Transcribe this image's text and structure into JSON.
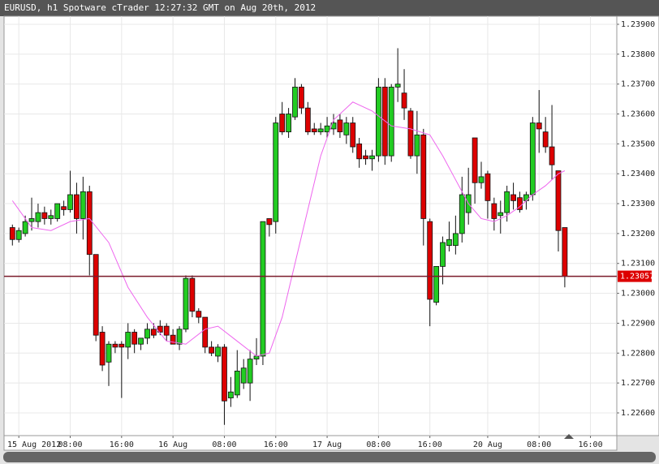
{
  "chart_data": {
    "type": "candlestick",
    "title": "EURUSD, h1 Spotware cTrader 12:27:32 GMT on Aug 20th, 2012",
    "up_color": "#22cc22",
    "down_color": "#dd0000",
    "grid": true,
    "open": [
      1.2322,
      1.2318,
      1.232,
      1.2324,
      1.2324,
      1.2327,
      1.2325,
      1.2325,
      1.2329,
      1.2328,
      1.2333,
      1.2325,
      1.2334,
      1.2313,
      1.2287,
      1.2277,
      1.2283,
      1.2283,
      1.2282,
      1.2287,
      1.2283,
      1.2285,
      1.2288,
      1.2289,
      1.2289,
      1.2286,
      1.2283,
      1.2288,
      1.2305,
      1.2294,
      1.2292,
      1.2282,
      1.2279,
      1.2282,
      1.2265,
      1.2266,
      1.227,
      1.227,
      1.2278,
      1.2279,
      1.2325,
      1.2324,
      1.236,
      1.2354,
      1.2359,
      1.2369,
      1.2362,
      1.2355,
      1.2354,
      1.2354,
      1.2355,
      1.2358,
      1.2353,
      1.2357,
      1.235,
      1.2346,
      1.2345,
      1.2346,
      1.2369,
      1.2346,
      1.2369,
      1.2367,
      1.2361,
      1.2346,
      1.2353,
      1.2324,
      1.2297,
      1.2309,
      1.2316,
      1.2316,
      1.232,
      1.2327,
      1.2352,
      1.2337,
      1.234,
      1.233,
      1.2326,
      1.2327,
      1.2333,
      1.2332,
      1.2331,
      1.2333,
      1.2357,
      1.2354,
      1.2349,
      1.2341,
      1.2322
    ],
    "high": [
      1.2323,
      1.2322,
      1.2326,
      1.2332,
      1.233,
      1.2329,
      1.2328,
      1.233,
      1.2331,
      1.2341,
      1.2337,
      1.2339,
      1.2336,
      1.2313,
      1.2289,
      1.2284,
      1.2284,
      1.2284,
      1.229,
      1.2288,
      1.2285,
      1.229,
      1.229,
      1.2291,
      1.229,
      1.2288,
      1.2289,
      1.2306,
      1.2306,
      1.2295,
      1.2292,
      1.2284,
      1.2283,
      1.2283,
      1.2272,
      1.2281,
      1.2278,
      1.2281,
      1.2285,
      1.2324,
      1.2325,
      1.2359,
      1.2364,
      1.2362,
      1.2372,
      1.237,
      1.2364,
      1.2357,
      1.2357,
      1.2359,
      1.236,
      1.236,
      1.2359,
      1.2359,
      1.2352,
      1.2348,
      1.2348,
      1.2372,
      1.2372,
      1.237,
      1.2382,
      1.2375,
      1.2362,
      1.2361,
      1.2355,
      1.2325,
      1.2309,
      1.2319,
      1.2324,
      1.2326,
      1.2339,
      1.2342,
      1.2352,
      1.2344,
      1.2341,
      1.2332,
      1.2331,
      1.2336,
      1.2337,
      1.2334,
      1.2334,
      1.2359,
      1.2368,
      1.2359,
      1.2363,
      1.2341,
      1.2322
    ],
    "low": [
      1.2316,
      1.2317,
      1.2319,
      1.2321,
      1.2322,
      1.2323,
      1.2323,
      1.2324,
      1.2326,
      1.2327,
      1.232,
      1.2318,
      1.2306,
      1.2284,
      1.2274,
      1.2269,
      1.228,
      1.2265,
      1.2278,
      1.228,
      1.2281,
      1.2283,
      1.2285,
      1.2286,
      1.2284,
      1.2283,
      1.2281,
      1.2287,
      1.2292,
      1.229,
      1.228,
      1.2279,
      1.2277,
      1.2256,
      1.2262,
      1.2265,
      1.2268,
      1.2264,
      1.2276,
      1.2276,
      1.2319,
      1.232,
      1.2353,
      1.2352,
      1.2358,
      1.236,
      1.2353,
      1.2353,
      1.2353,
      1.2352,
      1.2353,
      1.2352,
      1.235,
      1.2347,
      1.2342,
      1.2343,
      1.2341,
      1.2344,
      1.2343,
      1.2344,
      1.2364,
      1.2358,
      1.2345,
      1.234,
      1.2316,
      1.2289,
      1.2296,
      1.2303,
      1.2314,
      1.2313,
      1.2317,
      1.2323,
      1.233,
      1.2335,
      1.2325,
      1.2321,
      1.232,
      1.2324,
      1.2328,
      1.2327,
      1.2328,
      1.2331,
      1.2347,
      1.2347,
      1.2338,
      1.2314,
      1.2302
    ],
    "close": [
      1.2318,
      1.2321,
      1.2324,
      1.2325,
      1.2327,
      1.2325,
      1.2326,
      1.233,
      1.2328,
      1.2333,
      1.2325,
      1.2334,
      1.2313,
      1.2286,
      1.2276,
      1.2283,
      1.2282,
      1.2282,
      1.2287,
      1.2283,
      1.2285,
      1.2288,
      1.2286,
      1.2287,
      1.2286,
      1.2283,
      1.2288,
      1.2305,
      1.2294,
      1.2292,
      1.2282,
      1.228,
      1.2282,
      1.2264,
      1.2267,
      1.2274,
      1.2275,
      1.2278,
      1.2279,
      1.2324,
      1.2323,
      1.2357,
      1.2354,
      1.236,
      1.2369,
      1.2362,
      1.2354,
      1.2354,
      1.2355,
      1.2356,
      1.2357,
      1.2354,
      1.2357,
      1.2349,
      1.2345,
      1.2345,
      1.2346,
      1.2369,
      1.2346,
      1.2369,
      1.237,
      1.2362,
      1.2346,
      1.2353,
      1.2325,
      1.2298,
      1.2309,
      1.2317,
      1.2318,
      1.232,
      1.2333,
      1.2333,
      1.2337,
      1.2339,
      1.2331,
      1.2325,
      1.2327,
      1.2334,
      1.2331,
      1.2328,
      1.2333,
      1.2357,
      1.2355,
      1.2349,
      1.2343,
      1.2321,
      1.23057
    ],
    "ma": {
      "color": "#ee66ee",
      "x": [
        0,
        3,
        6,
        9,
        12,
        15,
        18,
        21,
        24,
        27,
        30,
        32,
        35,
        38,
        40,
        42,
        44,
        46,
        48,
        50,
        53,
        56,
        59,
        62,
        65,
        67,
        69,
        71,
        73,
        75,
        77,
        79,
        81,
        83,
        85,
        86
      ],
      "values": [
        1.2331,
        1.2322,
        1.2321,
        1.2324,
        1.2325,
        1.2317,
        1.2302,
        1.2292,
        1.2284,
        1.2283,
        1.2288,
        1.2289,
        1.2284,
        1.2279,
        1.228,
        1.2292,
        1.231,
        1.2328,
        1.2346,
        1.2358,
        1.2364,
        1.2361,
        1.2356,
        1.2355,
        1.2353,
        1.2346,
        1.2338,
        1.233,
        1.2325,
        1.2324,
        1.2326,
        1.2329,
        1.2333,
        1.2336,
        1.234,
        1.2341
      ]
    },
    "current_price": 1.23057,
    "xlim": [
      -1.3,
      94.1
    ],
    "ylim": [
      1.22524,
      1.23927
    ],
    "xticks": [
      {
        "value": 1,
        "label": "15 Aug 2012"
      },
      {
        "value": 9,
        "label": "08:00"
      },
      {
        "value": 17,
        "label": "16:00"
      },
      {
        "value": 25,
        "label": "16 Aug"
      },
      {
        "value": 33,
        "label": "08:00"
      },
      {
        "value": 41,
        "label": "16:00"
      },
      {
        "value": 49,
        "label": "17 Aug"
      },
      {
        "value": 57,
        "label": "08:00"
      },
      {
        "value": 65,
        "label": "16:00"
      },
      {
        "value": 74,
        "label": "20 Aug"
      },
      {
        "value": 82,
        "label": "08:00"
      },
      {
        "value": 90,
        "label": "16:00"
      }
    ],
    "yticks": [
      {
        "value": 1.226,
        "label": "1.22600"
      },
      {
        "value": 1.227,
        "label": "1.22700"
      },
      {
        "value": 1.228,
        "label": "1.22800"
      },
      {
        "value": 1.229,
        "label": "1.22900"
      },
      {
        "value": 1.23,
        "label": "1.23000"
      },
      {
        "value": 1.231,
        "label": "1.23100"
      },
      {
        "value": 1.232,
        "label": "1.23200"
      },
      {
        "value": 1.233,
        "label": "1.23300"
      },
      {
        "value": 1.234,
        "label": "1.23400"
      },
      {
        "value": 1.235,
        "label": "1.23500"
      },
      {
        "value": 1.236,
        "label": "1.23600"
      },
      {
        "value": 1.237,
        "label": "1.23700"
      },
      {
        "value": 1.238,
        "label": "1.23800"
      },
      {
        "value": 1.239,
        "label": "1.23900"
      }
    ]
  }
}
